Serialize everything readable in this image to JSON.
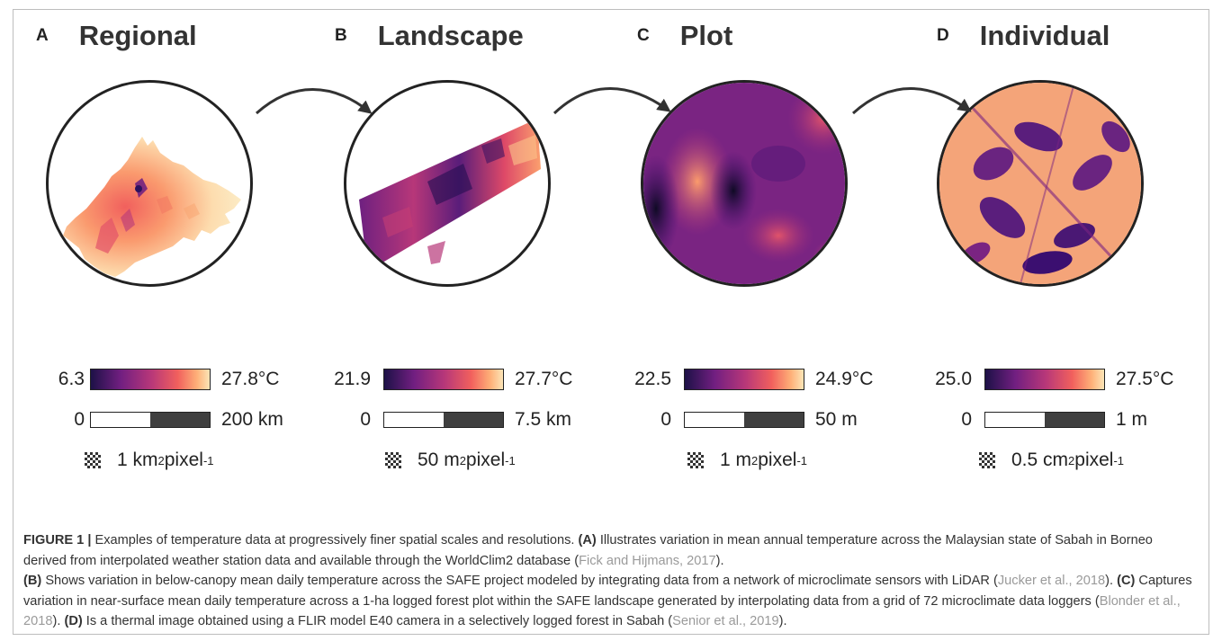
{
  "panels": [
    {
      "letter": "A",
      "title": "Regional",
      "cbar_min": "6.3",
      "cbar_max": "27.8°C",
      "scale_min": "0",
      "scale_max": "200 km",
      "res_value": "1 km",
      "res_exp": "2",
      "res_unit": " pixel",
      "res_unit_exp": "-1"
    },
    {
      "letter": "B",
      "title": "Landscape",
      "cbar_min": "21.9",
      "cbar_max": "27.7°C",
      "scale_min": "0",
      "scale_max": "7.5 km",
      "res_value": "50 m",
      "res_exp": "2",
      "res_unit": " pixel",
      "res_unit_exp": "-1"
    },
    {
      "letter": "C",
      "title": "Plot",
      "cbar_min": "22.5",
      "cbar_max": "24.9°C",
      "scale_min": "0",
      "scale_max": "50 m",
      "res_value": "1 m",
      "res_exp": "2",
      "res_unit": " pixel",
      "res_unit_exp": "-1"
    },
    {
      "letter": "D",
      "title": "Individual",
      "cbar_min": "25.0",
      "cbar_max": "27.5°C",
      "scale_min": "0",
      "scale_max": "1 m",
      "res_value": "0.5 cm",
      "res_exp": "2",
      "res_unit": " pixel",
      "res_unit_exp": "-1"
    }
  ],
  "colors": {
    "magma_dark": "#1d1147",
    "magma_purple": "#721f81",
    "magma_red": "#b73779",
    "magma_orange": "#f1605d",
    "magma_light": "#feb078",
    "magma_pale": "#fcfdbf",
    "frame": "#bdbdbd",
    "citation": "#9a9a9a"
  },
  "caption": {
    "label": "FIGURE 1 |",
    "t1": " Examples of temperature data at progressively finer spatial scales and resolutions. ",
    "a": "(A)",
    "t2": " Illustrates variation in mean annual temperature across the Malaysian state of Sabah in Borneo derived from interpolated weather station data and available through the WorldClim2 database (",
    "c1": "Fick and Hijmans, 2017",
    "t3": ").",
    "b": "(B)",
    "t4": " Shows variation in below-canopy mean daily temperature across the SAFE project modeled by integrating data from a network of microclimate sensors with LiDAR (",
    "c2": "Jucker et al., 2018",
    "t5": "). ",
    "c": "(C)",
    "t6": " Captures variation in near-surface mean daily temperature across a 1-ha logged forest plot within the SAFE landscape generated by interpolating data from a grid of 72 microclimate data loggers (",
    "c3": "Blonder et al., 2018",
    "t7": "). ",
    "d": "(D)",
    "t8": " Is a thermal image obtained using a FLIR model E40 camera in a selectively logged forest in Sabah (",
    "c4": "Senior et al., 2019",
    "t9": ")."
  }
}
